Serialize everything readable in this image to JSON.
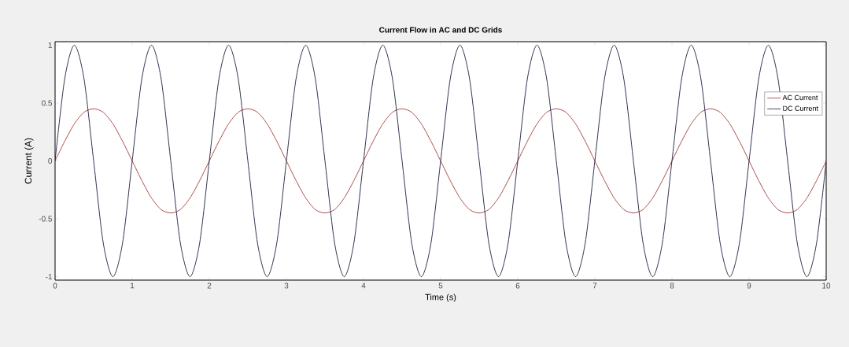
{
  "chart_data": {
    "type": "line",
    "title": "Current Flow in AC and DC Grids",
    "xlabel": "Time (s)",
    "ylabel": "Current (A)",
    "x": [
      0,
      0.125,
      0.25,
      0.375,
      0.5,
      0.625,
      0.75,
      0.875,
      1,
      1.125,
      1.25,
      1.375,
      1.5,
      1.625,
      1.75,
      1.875,
      2,
      2.125,
      2.25,
      2.375,
      2.5,
      2.625,
      2.75,
      2.875,
      3,
      3.125,
      3.25,
      3.375,
      3.5,
      3.625,
      3.75,
      3.875,
      4,
      4.125,
      4.25,
      4.375,
      4.5,
      4.625,
      4.75,
      4.875,
      5,
      5.125,
      5.25,
      5.375,
      5.5,
      5.625,
      5.75,
      5.875,
      6,
      6.125,
      6.25,
      6.375,
      6.5,
      6.625,
      6.75,
      6.875,
      7,
      7.125,
      7.25,
      7.375,
      7.5,
      7.625,
      7.75,
      7.875,
      8,
      8.125,
      8.25,
      8.375,
      8.5,
      8.625,
      8.75,
      8.875,
      9,
      9.125,
      9.25,
      9.375,
      9.5,
      9.625,
      9.75,
      9.875,
      10
    ],
    "series": [
      {
        "name": "AC Current",
        "color": "#a33a3a",
        "values": [
          0,
          0.17,
          0.32,
          0.42,
          0.45,
          0.42,
          0.32,
          0.17,
          0,
          -0.17,
          -0.32,
          -0.42,
          -0.45,
          -0.42,
          -0.32,
          -0.17,
          0,
          0.17,
          0.32,
          0.42,
          0.45,
          0.42,
          0.32,
          0.17,
          0,
          -0.17,
          -0.32,
          -0.42,
          -0.45,
          -0.42,
          -0.32,
          -0.17,
          0,
          0.17,
          0.32,
          0.42,
          0.45,
          0.42,
          0.32,
          0.17,
          0,
          -0.17,
          -0.32,
          -0.42,
          -0.45,
          -0.42,
          -0.32,
          -0.17,
          0,
          0.17,
          0.32,
          0.42,
          0.45,
          0.42,
          0.32,
          0.17,
          0,
          -0.17,
          -0.32,
          -0.42,
          -0.45,
          -0.42,
          -0.32,
          -0.17,
          0,
          0.17,
          0.32,
          0.42,
          0.45,
          0.42,
          0.32,
          0.17,
          0,
          -0.17,
          -0.32,
          -0.42,
          -0.45,
          -0.42,
          -0.32,
          -0.17,
          0
        ]
      },
      {
        "name": "DC Current",
        "color": "#1c1c3c",
        "values": [
          0,
          0.71,
          1,
          0.71,
          0,
          -0.71,
          -1,
          -0.71,
          0,
          0.71,
          1,
          0.71,
          0,
          -0.71,
          -1,
          -0.71,
          0,
          0.71,
          1,
          0.71,
          0,
          -0.71,
          -1,
          -0.71,
          0,
          0.71,
          1,
          0.71,
          0,
          -0.71,
          -1,
          -0.71,
          0,
          0.71,
          1,
          0.71,
          0,
          -0.71,
          -1,
          -0.71,
          0,
          0.71,
          1,
          0.71,
          0,
          -0.71,
          -1,
          -0.71,
          0,
          0.71,
          1,
          0.71,
          0,
          -0.71,
          -1,
          -0.71,
          0,
          0.71,
          1,
          0.71,
          0,
          -0.71,
          -1,
          -0.71,
          0,
          0.71,
          1,
          0.71,
          0,
          -0.71,
          -1,
          -0.71,
          0,
          0.71,
          1,
          0.71,
          0,
          -0.71,
          -1,
          -0.71,
          0
        ]
      }
    ],
    "xlim": [
      0,
      10
    ],
    "ylim": [
      -1.03,
      1.03
    ],
    "xticks": [
      0,
      1,
      2,
      3,
      4,
      5,
      6,
      7,
      8,
      9,
      10
    ],
    "yticks": [
      -1,
      -0.5,
      0,
      0.5,
      1
    ],
    "legend": "top right"
  }
}
